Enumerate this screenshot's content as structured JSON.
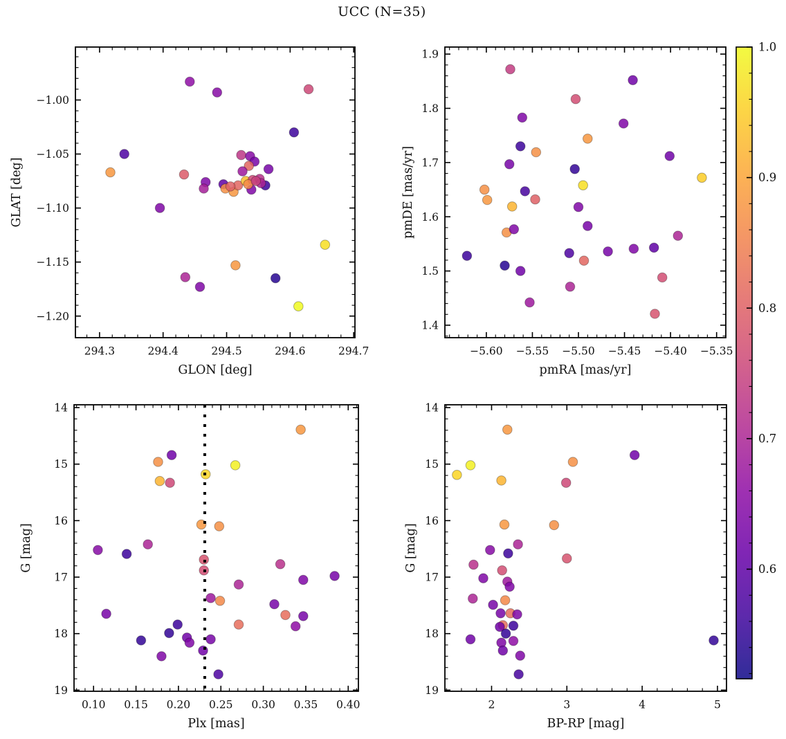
{
  "title": "UCC (N=35)",
  "colorbar": {
    "cmap": "plasma",
    "alpha": 0.85,
    "vmin": 0.516,
    "vmax": 1.0,
    "ticks": [
      1.0,
      0.9,
      0.8,
      0.7,
      0.6
    ],
    "tick_labels": [
      "1.0",
      "0.9",
      "0.8",
      "0.7",
      "0.6"
    ],
    "minor_step": 0.02
  },
  "chart_data": [
    {
      "id": "glon-glat",
      "type": "scatter",
      "xlabel": "GLON [deg]",
      "ylabel": "GLAT [deg]",
      "xlim": [
        294.262,
        294.702
      ],
      "ylim": [
        -1.22,
        -0.951
      ],
      "xticks": [
        294.3,
        294.4,
        294.5,
        294.6,
        294.7
      ],
      "xtick_labels": [
        "294.3",
        "294.4",
        "294.5",
        "294.6",
        "294.7"
      ],
      "yticks": [
        -1.0,
        -1.05,
        -1.1,
        -1.15,
        -1.2
      ],
      "ytick_labels": [
        "−1.00",
        "−1.05",
        "−1.10",
        "−1.15",
        "−1.20"
      ],
      "x_minor_step": 0.02,
      "y_minor_step": 0.01,
      "points": [
        [
          294.442,
          -0.983,
          0.66
        ],
        [
          294.485,
          -0.993,
          0.65
        ],
        [
          294.629,
          -0.99,
          0.76
        ],
        [
          294.606,
          -1.03,
          0.56
        ],
        [
          294.339,
          -1.05,
          0.58
        ],
        [
          294.317,
          -1.067,
          0.88
        ],
        [
          294.433,
          -1.069,
          0.79
        ],
        [
          294.395,
          -1.1,
          0.64
        ],
        [
          294.523,
          -1.051,
          0.73
        ],
        [
          294.537,
          -1.052,
          0.65
        ],
        [
          294.544,
          -1.057,
          0.63
        ],
        [
          294.535,
          -1.061,
          0.81
        ],
        [
          294.566,
          -1.064,
          0.63
        ],
        [
          294.467,
          -1.076,
          0.64
        ],
        [
          294.464,
          -1.082,
          0.69
        ],
        [
          294.495,
          -1.078,
          0.6
        ],
        [
          294.498,
          -1.082,
          0.87
        ],
        [
          294.511,
          -1.085,
          0.88
        ],
        [
          294.518,
          -1.079,
          0.81
        ],
        [
          294.53,
          -1.075,
          0.93
        ],
        [
          294.541,
          -1.074,
          0.76
        ],
        [
          294.552,
          -1.073,
          0.72
        ],
        [
          294.539,
          -1.083,
          0.64
        ],
        [
          294.561,
          -1.079,
          0.56
        ],
        [
          294.554,
          -1.077,
          0.7
        ],
        [
          294.435,
          -1.164,
          0.7
        ],
        [
          294.458,
          -1.173,
          0.64
        ],
        [
          294.514,
          -1.153,
          0.88
        ],
        [
          294.577,
          -1.165,
          0.54
        ],
        [
          294.613,
          -1.191,
          1.0
        ],
        [
          294.655,
          -1.134,
          0.97
        ],
        [
          294.525,
          -1.066,
          0.68
        ],
        [
          294.506,
          -1.08,
          0.8
        ],
        [
          294.534,
          -1.078,
          0.86
        ],
        [
          294.546,
          -1.075,
          0.75
        ]
      ]
    },
    {
      "id": "pmra-pmde",
      "type": "scatter",
      "xlabel": "pmRA [mas/yr]",
      "ylabel": "pmDE [mas/yr]",
      "xlim": [
        -5.645,
        -5.34
      ],
      "ylim": [
        1.377,
        1.913
      ],
      "xticks": [
        -5.6,
        -5.55,
        -5.5,
        -5.45,
        -5.4,
        -5.35
      ],
      "xtick_labels": [
        "−5.60",
        "−5.55",
        "−5.50",
        "−5.45",
        "−5.40",
        "−5.35"
      ],
      "yticks": [
        1.9,
        1.8,
        1.7,
        1.6,
        1.5,
        1.4
      ],
      "ytick_labels": [
        "1.9",
        "1.8",
        "1.7",
        "1.6",
        "1.5",
        "1.4"
      ],
      "x_minor_step": 0.01,
      "y_minor_step": 0.02,
      "points": [
        [
          -5.574,
          1.872,
          0.74
        ],
        [
          -5.441,
          1.852,
          0.62
        ],
        [
          -5.503,
          1.817,
          0.77
        ],
        [
          -5.561,
          1.783,
          0.64
        ],
        [
          -5.451,
          1.772,
          0.64
        ],
        [
          -5.49,
          1.744,
          0.88
        ],
        [
          -5.563,
          1.73,
          0.56
        ],
        [
          -5.546,
          1.719,
          0.87
        ],
        [
          -5.575,
          1.697,
          0.63
        ],
        [
          -5.401,
          1.712,
          0.62
        ],
        [
          -5.504,
          1.688,
          0.55
        ],
        [
          -5.366,
          1.672,
          0.95
        ],
        [
          -5.602,
          1.65,
          0.87
        ],
        [
          -5.495,
          1.658,
          0.97
        ],
        [
          -5.599,
          1.631,
          0.88
        ],
        [
          -5.558,
          1.647,
          0.57
        ],
        [
          -5.547,
          1.632,
          0.8
        ],
        [
          -5.572,
          1.619,
          0.92
        ],
        [
          -5.5,
          1.618,
          0.64
        ],
        [
          -5.49,
          1.583,
          0.63
        ],
        [
          -5.578,
          1.571,
          0.87
        ],
        [
          -5.57,
          1.577,
          0.64
        ],
        [
          -5.392,
          1.565,
          0.7
        ],
        [
          -5.621,
          1.528,
          0.56
        ],
        [
          -5.58,
          1.51,
          0.54
        ],
        [
          -5.563,
          1.5,
          0.62
        ],
        [
          -5.51,
          1.533,
          0.58
        ],
        [
          -5.494,
          1.519,
          0.81
        ],
        [
          -5.468,
          1.536,
          0.63
        ],
        [
          -5.44,
          1.541,
          0.64
        ],
        [
          -5.418,
          1.543,
          0.6
        ],
        [
          -5.409,
          1.488,
          0.77
        ],
        [
          -5.509,
          1.471,
          0.7
        ],
        [
          -5.553,
          1.442,
          0.68
        ],
        [
          -5.417,
          1.421,
          0.78
        ]
      ]
    },
    {
      "id": "plx-g",
      "type": "scatter",
      "xlabel": "Plx [mas]",
      "ylabel": "G [mag]",
      "xlim": [
        0.077,
        0.412
      ],
      "ylim": [
        19.02,
        13.95
      ],
      "xticks": [
        0.1,
        0.15,
        0.2,
        0.25,
        0.3,
        0.35,
        0.4
      ],
      "xtick_labels": [
        "0.10",
        "0.15",
        "0.20",
        "0.25",
        "0.30",
        "0.35",
        "0.40"
      ],
      "yticks": [
        14,
        15,
        16,
        17,
        18,
        19
      ],
      "ytick_labels": [
        "14",
        "15",
        "16",
        "17",
        "18",
        "19"
      ],
      "x_minor_step": 0.01,
      "y_minor_step": 0.2,
      "vline": {
        "x": 0.231,
        "style": "dotted",
        "color": "#000000"
      },
      "points": [
        [
          0.344,
          14.39,
          0.88
        ],
        [
          0.192,
          14.84,
          0.62
        ],
        [
          0.176,
          14.96,
          0.87
        ],
        [
          0.267,
          15.02,
          0.99
        ],
        [
          0.232,
          15.18,
          0.96
        ],
        [
          0.178,
          15.3,
          0.92
        ],
        [
          0.19,
          15.33,
          0.76
        ],
        [
          0.227,
          16.07,
          0.88
        ],
        [
          0.248,
          16.1,
          0.87
        ],
        [
          0.164,
          16.42,
          0.7
        ],
        [
          0.105,
          16.52,
          0.65
        ],
        [
          0.139,
          16.59,
          0.56
        ],
        [
          0.23,
          16.69,
          0.78
        ],
        [
          0.23,
          16.88,
          0.77
        ],
        [
          0.32,
          16.77,
          0.72
        ],
        [
          0.271,
          17.13,
          0.7
        ],
        [
          0.347,
          17.05,
          0.64
        ],
        [
          0.384,
          16.98,
          0.63
        ],
        [
          0.238,
          17.37,
          0.68
        ],
        [
          0.249,
          17.42,
          0.86
        ],
        [
          0.313,
          17.48,
          0.63
        ],
        [
          0.326,
          17.67,
          0.82
        ],
        [
          0.347,
          17.69,
          0.63
        ],
        [
          0.115,
          17.65,
          0.63
        ],
        [
          0.271,
          17.84,
          0.82
        ],
        [
          0.338,
          17.87,
          0.66
        ],
        [
          0.199,
          17.84,
          0.56
        ],
        [
          0.189,
          17.99,
          0.55
        ],
        [
          0.156,
          18.12,
          0.55
        ],
        [
          0.21,
          18.07,
          0.62
        ],
        [
          0.213,
          18.16,
          0.64
        ],
        [
          0.238,
          18.1,
          0.63
        ],
        [
          0.18,
          18.4,
          0.64
        ],
        [
          0.229,
          18.3,
          0.62
        ],
        [
          0.247,
          18.72,
          0.58
        ]
      ]
    },
    {
      "id": "bprp-g",
      "type": "scatter",
      "xlabel": "BP-RP [mag]",
      "ylabel": "G [mag]",
      "xlim": [
        1.38,
        5.12
      ],
      "ylim": [
        19.02,
        13.95
      ],
      "xticks": [
        2,
        3,
        4,
        5
      ],
      "xtick_labels": [
        "2",
        "3",
        "4",
        "5"
      ],
      "yticks": [
        14,
        15,
        16,
        17,
        18,
        19
      ],
      "ytick_labels": [
        "14",
        "15",
        "16",
        "17",
        "18",
        "19"
      ],
      "x_minor_step": 0.2,
      "y_minor_step": 0.2,
      "points": [
        [
          2.21,
          14.39,
          0.88
        ],
        [
          3.9,
          14.84,
          0.62
        ],
        [
          3.08,
          14.96,
          0.87
        ],
        [
          1.72,
          15.02,
          0.99
        ],
        [
          1.54,
          15.19,
          0.96
        ],
        [
          2.13,
          15.29,
          0.92
        ],
        [
          2.99,
          15.33,
          0.76
        ],
        [
          2.17,
          16.07,
          0.88
        ],
        [
          2.83,
          16.08,
          0.87
        ],
        [
          2.35,
          16.42,
          0.7
        ],
        [
          1.98,
          16.52,
          0.65
        ],
        [
          2.22,
          16.58,
          0.56
        ],
        [
          3.0,
          16.67,
          0.78
        ],
        [
          1.76,
          16.78,
          0.72
        ],
        [
          1.89,
          17.02,
          0.64
        ],
        [
          2.14,
          16.88,
          0.77
        ],
        [
          2.21,
          17.08,
          0.68
        ],
        [
          2.24,
          17.17,
          0.64
        ],
        [
          1.75,
          17.38,
          0.7
        ],
        [
          2.18,
          17.41,
          0.86
        ],
        [
          2.02,
          17.49,
          0.63
        ],
        [
          2.12,
          17.64,
          0.63
        ],
        [
          2.25,
          17.64,
          0.82
        ],
        [
          2.34,
          17.66,
          0.64
        ],
        [
          2.15,
          17.85,
          0.82
        ],
        [
          2.11,
          17.88,
          0.62
        ],
        [
          2.29,
          17.86,
          0.56
        ],
        [
          2.19,
          18.0,
          0.55
        ],
        [
          1.72,
          18.1,
          0.62
        ],
        [
          2.13,
          18.16,
          0.64
        ],
        [
          2.29,
          18.13,
          0.66
        ],
        [
          2.15,
          18.3,
          0.62
        ],
        [
          2.38,
          18.39,
          0.64
        ],
        [
          4.95,
          18.12,
          0.55
        ],
        [
          2.36,
          18.72,
          0.57
        ]
      ]
    }
  ]
}
